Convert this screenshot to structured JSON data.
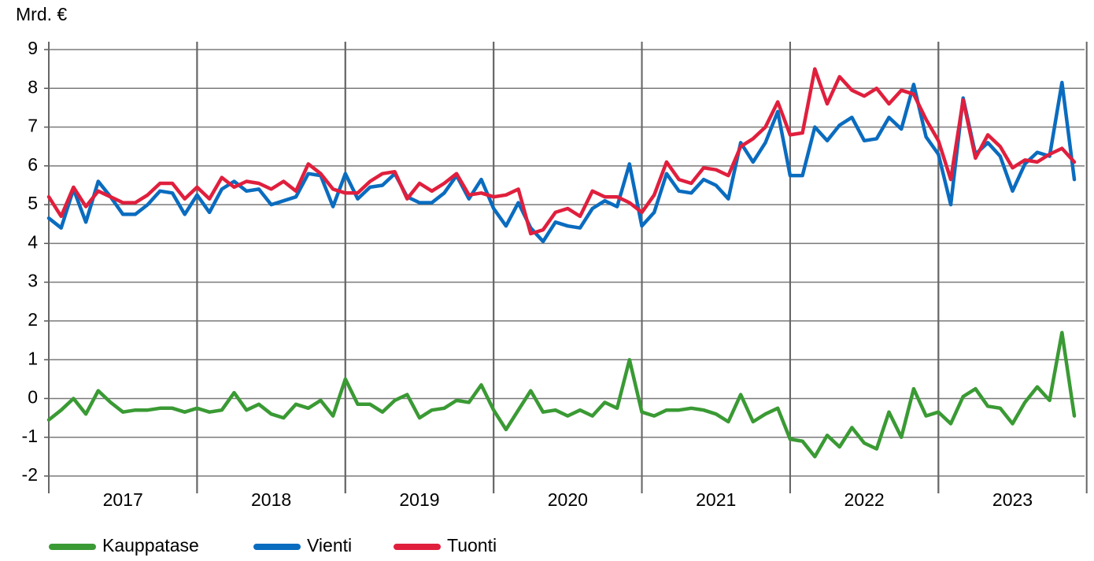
{
  "chart_data": {
    "type": "line",
    "y_unit_label": "Mrd. €",
    "categories": [
      "2017",
      null,
      null,
      null,
      null,
      null,
      null,
      null,
      null,
      null,
      null,
      null,
      "2018",
      null,
      null,
      null,
      null,
      null,
      null,
      null,
      null,
      null,
      null,
      null,
      "2019",
      null,
      null,
      null,
      null,
      null,
      null,
      null,
      null,
      null,
      null,
      null,
      "2020",
      null,
      null,
      null,
      null,
      null,
      null,
      null,
      null,
      null,
      null,
      null,
      "2021",
      null,
      null,
      null,
      null,
      null,
      null,
      null,
      null,
      null,
      null,
      null,
      "2022",
      null,
      null,
      null,
      null,
      null,
      null,
      null,
      null,
      null,
      null,
      null,
      "2023",
      null,
      null,
      null,
      null,
      null,
      null,
      null,
      null,
      null,
      null,
      null
    ],
    "series": [
      {
        "name": "Kauppatase",
        "color": "#3a9a34",
        "values": [
          -0.55,
          -0.3,
          0.0,
          -0.4,
          0.2,
          -0.1,
          -0.35,
          -0.3,
          -0.3,
          -0.25,
          -0.25,
          -0.35,
          -0.25,
          -0.35,
          -0.3,
          0.15,
          -0.3,
          -0.15,
          -0.4,
          -0.5,
          -0.15,
          -0.25,
          -0.05,
          -0.45,
          0.5,
          -0.15,
          -0.15,
          -0.35,
          -0.05,
          0.1,
          -0.5,
          -0.3,
          -0.25,
          -0.05,
          -0.1,
          0.35,
          -0.3,
          -0.8,
          -0.3,
          0.2,
          -0.35,
          -0.3,
          -0.45,
          -0.3,
          -0.45,
          -0.1,
          -0.25,
          1.0,
          -0.35,
          -0.45,
          -0.3,
          -0.3,
          -0.25,
          -0.3,
          -0.4,
          -0.6,
          0.1,
          -0.6,
          -0.4,
          -0.25,
          -1.05,
          -1.1,
          -1.5,
          -0.95,
          -1.25,
          -0.75,
          -1.15,
          -1.3,
          -0.35,
          -1.0,
          0.25,
          -0.45,
          -0.35,
          -0.65,
          0.05,
          0.25,
          -0.2,
          -0.25,
          -0.65,
          -0.1,
          0.3,
          -0.05,
          1.7,
          -0.45
        ]
      },
      {
        "name": "Vienti",
        "color": "#0a6cbf",
        "values": [
          4.65,
          4.4,
          5.4,
          4.55,
          5.6,
          5.2,
          4.75,
          4.75,
          5.0,
          5.35,
          5.3,
          4.75,
          5.25,
          4.8,
          5.4,
          5.6,
          5.35,
          5.4,
          5.0,
          5.1,
          5.2,
          5.8,
          5.75,
          4.95,
          5.8,
          5.15,
          5.45,
          5.5,
          5.8,
          5.2,
          5.05,
          5.05,
          5.3,
          5.75,
          5.15,
          5.65,
          4.9,
          4.45,
          5.05,
          4.4,
          4.05,
          4.55,
          4.45,
          4.4,
          4.9,
          5.1,
          4.95,
          6.05,
          4.45,
          4.8,
          5.8,
          5.35,
          5.3,
          5.65,
          5.5,
          5.15,
          6.6,
          6.1,
          6.6,
          7.4,
          5.75,
          5.75,
          7.0,
          6.65,
          7.05,
          7.25,
          6.65,
          6.7,
          7.25,
          6.95,
          8.1,
          6.75,
          6.3,
          5.0,
          7.75,
          6.3,
          6.6,
          6.25,
          5.35,
          6.05,
          6.35,
          6.25,
          8.15,
          5.65
        ]
      },
      {
        "name": "Tuonti",
        "color": "#e01f3d",
        "values": [
          5.2,
          4.7,
          5.45,
          4.95,
          5.35,
          5.2,
          5.05,
          5.05,
          5.25,
          5.55,
          5.55,
          5.15,
          5.45,
          5.15,
          5.7,
          5.45,
          5.6,
          5.55,
          5.4,
          5.6,
          5.35,
          6.05,
          5.8,
          5.4,
          5.3,
          5.3,
          5.6,
          5.8,
          5.85,
          5.15,
          5.55,
          5.35,
          5.55,
          5.8,
          5.25,
          5.3,
          5.2,
          5.25,
          5.4,
          4.25,
          4.35,
          4.8,
          4.9,
          4.7,
          5.35,
          5.2,
          5.2,
          5.05,
          4.8,
          5.25,
          6.1,
          5.65,
          5.55,
          5.95,
          5.9,
          5.75,
          6.5,
          6.7,
          7.0,
          7.65,
          6.8,
          6.85,
          8.5,
          7.6,
          8.3,
          7.95,
          7.8,
          8.0,
          7.6,
          7.95,
          7.85,
          7.2,
          6.65,
          5.65,
          7.7,
          6.2,
          6.8,
          6.5,
          5.95,
          6.15,
          6.1,
          6.3,
          6.45,
          6.1
        ]
      }
    ],
    "ylim": [
      -2,
      9
    ],
    "yticks": [
      -2,
      -1,
      0,
      1,
      2,
      3,
      4,
      5,
      6,
      7,
      8,
      9
    ],
    "grid": true,
    "legend": "bottom"
  }
}
